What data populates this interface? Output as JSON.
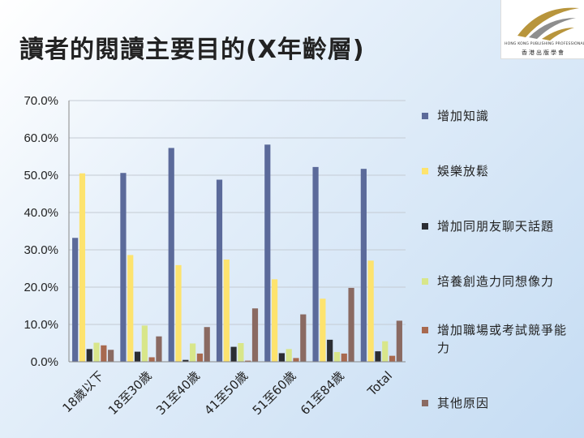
{
  "title": "讀者的閱讀主要目的(X年齡層)",
  "logo": {
    "name_en": "HONG KONG PUBLISHING PROFESSIONALS SOCIETY",
    "name_zh": "香港出版學會"
  },
  "chart_data": {
    "type": "bar",
    "title": "讀者的閱讀主要目的(X年齡層)",
    "categories": [
      "18歲以下",
      "18至30歲",
      "31至40歲",
      "41至50歲",
      "51至60歲",
      "61至84歲",
      "Total"
    ],
    "series": [
      {
        "name": "增加知識",
        "color": "#5b6a9a",
        "values": [
          33.2,
          50.6,
          57.3,
          48.8,
          58.2,
          52.2,
          51.7
        ]
      },
      {
        "name": "娛樂放鬆",
        "color": "#fde36e",
        "values": [
          50.5,
          28.6,
          25.9,
          27.4,
          22.1,
          16.9,
          27.1
        ]
      },
      {
        "name": "增加同朋友聊天話題",
        "color": "#2b2d33",
        "values": [
          3.4,
          2.7,
          0.5,
          4.0,
          2.3,
          5.9,
          2.8
        ]
      },
      {
        "name": "培養創造力同想像力",
        "color": "#d8e68a",
        "values": [
          5.1,
          9.7,
          4.9,
          5.0,
          3.4,
          2.6,
          5.5
        ]
      },
      {
        "name": "增加職場或考試競爭能力",
        "color": "#a8694f",
        "values": [
          4.4,
          1.2,
          2.2,
          0.3,
          1.0,
          2.2,
          1.6
        ]
      },
      {
        "name": "其他原因",
        "color": "#8a6a62",
        "values": [
          3.2,
          6.8,
          9.3,
          14.3,
          12.7,
          19.8,
          11.0
        ]
      }
    ],
    "ylim": [
      0,
      70
    ],
    "yticks": [
      "0.0%",
      "10.0%",
      "20.0%",
      "30.0%",
      "40.0%",
      "50.0%",
      "60.0%",
      "70.0%"
    ],
    "xlabel": "",
    "ylabel": "",
    "grid": true,
    "legend_position": "right"
  }
}
